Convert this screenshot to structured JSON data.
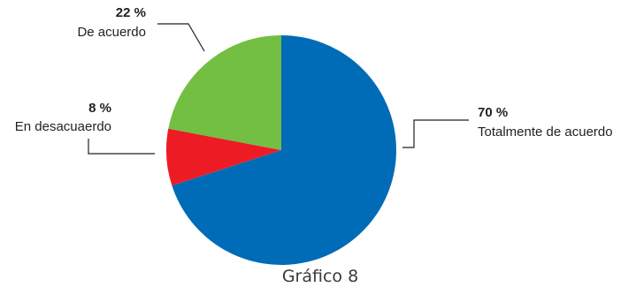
{
  "chart_data": {
    "type": "pie",
    "title": "",
    "caption": "Gráfico 8",
    "slices": [
      {
        "label": "Totalmente de acuerdo",
        "percent_label": "70 %",
        "value": 70,
        "color": "#006bb6"
      },
      {
        "label": "En desacuaerdo",
        "percent_label": "8 %",
        "value": 8,
        "color": "#ed1c24"
      },
      {
        "label": "De acuerdo",
        "percent_label": "22 %",
        "value": 22,
        "color": "#72bf44"
      }
    ],
    "start": "12 o'clock",
    "direction": "clockwise",
    "legend": "none"
  }
}
